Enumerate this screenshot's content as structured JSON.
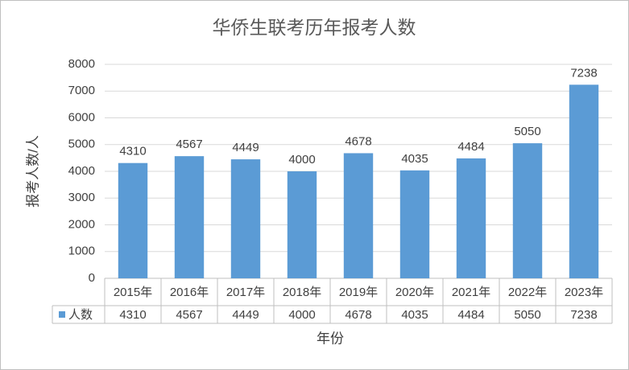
{
  "chart_data": {
    "type": "bar",
    "title": "华侨生联考历年报考人数",
    "y_label": "报考人数/人",
    "x_label": "年份",
    "categories": [
      "2015年",
      "2016年",
      "2017年",
      "2018年",
      "2019年",
      "2020年",
      "2021年",
      "2022年",
      "2023年"
    ],
    "series": [
      {
        "name": "人数",
        "color": "#5b9bd5",
        "values": [
          4310,
          4567,
          4449,
          4000,
          4678,
          4035,
          4484,
          5050,
          7238
        ]
      }
    ],
    "ylim": [
      0,
      8000
    ],
    "yticks": [
      0,
      1000,
      2000,
      3000,
      4000,
      5000,
      6000,
      7000,
      8000
    ],
    "grid": true,
    "data_labels": true,
    "data_table": true
  }
}
